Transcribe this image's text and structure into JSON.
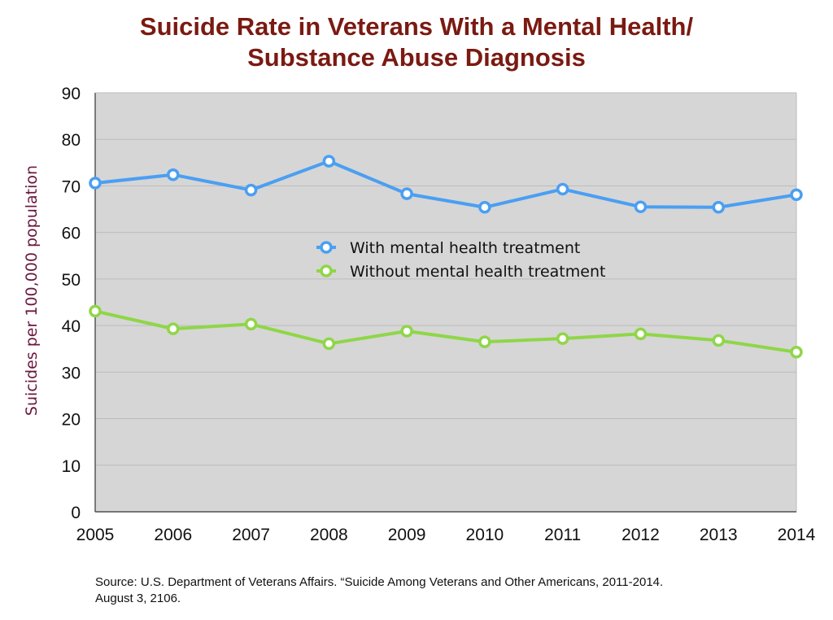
{
  "chart_data": {
    "type": "line",
    "title": "Suicide Rate in Veterans With a Mental Health/ Substance Abuse Diagnosis",
    "title_lines": [
      "Suicide Rate in Veterans With a Mental Health/",
      "Substance Abuse Diagnosis"
    ],
    "xlabel": "",
    "ylabel": "Suicides per 100,000 population",
    "categories": [
      "2005",
      "2006",
      "2007",
      "2008",
      "2009",
      "2010",
      "2011",
      "2012",
      "2013",
      "2014"
    ],
    "ylim": [
      0,
      90
    ],
    "yticks": [
      0,
      10,
      20,
      30,
      40,
      50,
      60,
      70,
      80,
      90
    ],
    "grid": true,
    "legend_position": "center",
    "series": [
      {
        "name": "With mental health treatment",
        "color": "#4a9ff2",
        "values": [
          70.6,
          72.4,
          69.1,
          75.3,
          68.3,
          65.4,
          69.3,
          65.5,
          65.4,
          68.1
        ]
      },
      {
        "name": "Without mental health treatment",
        "color": "#8fd648",
        "values": [
          43.1,
          39.3,
          40.3,
          36.1,
          38.8,
          36.5,
          37.2,
          38.2,
          36.8,
          34.3
        ]
      }
    ]
  },
  "colors": {
    "plot_background": "#d6d6d6",
    "title": "#7a1a12",
    "ylabel": "#6b1840"
  },
  "source": {
    "line1": "Source: U.S. Department of Veterans Affairs. “Suicide Among Veterans and Other Americans, 2011-2014.",
    "line2": "August 3, 2106."
  }
}
